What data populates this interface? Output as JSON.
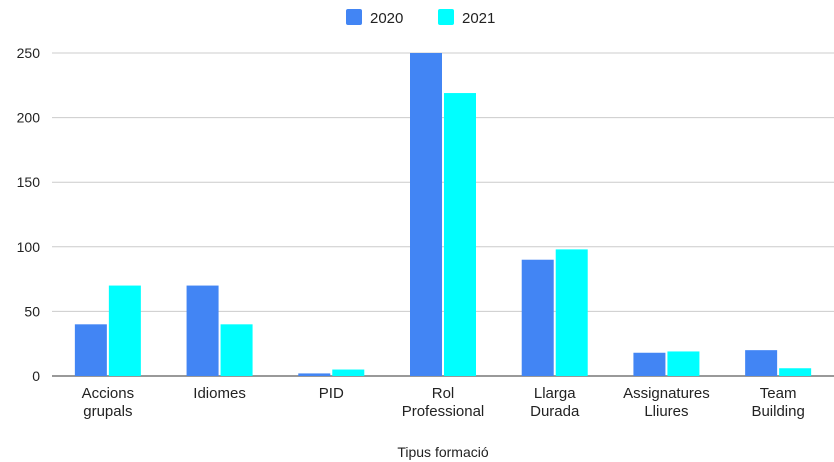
{
  "chart_data": {
    "type": "bar",
    "title": "",
    "xlabel": "Tipus formació",
    "ylabel": "",
    "categories": [
      [
        "Accions",
        "grupals"
      ],
      [
        "Idiomes"
      ],
      [
        "PID"
      ],
      [
        "Rol",
        "Professional"
      ],
      [
        "Llarga",
        "Durada"
      ],
      [
        "Assignatures",
        "Lliures"
      ],
      [
        "Team",
        "Building"
      ]
    ],
    "series": [
      {
        "name": "2020",
        "color": "#4285f4",
        "values": [
          40,
          70,
          2,
          250,
          90,
          18,
          20
        ]
      },
      {
        "name": "2021",
        "color": "#00ffff",
        "values": [
          70,
          40,
          5,
          219,
          98,
          19,
          6
        ]
      }
    ],
    "yticks": [
      "0",
      "50",
      "100",
      "150",
      "200",
      "250"
    ],
    "ylim": [
      0,
      250
    ],
    "grid": true,
    "legend_position": "top"
  }
}
